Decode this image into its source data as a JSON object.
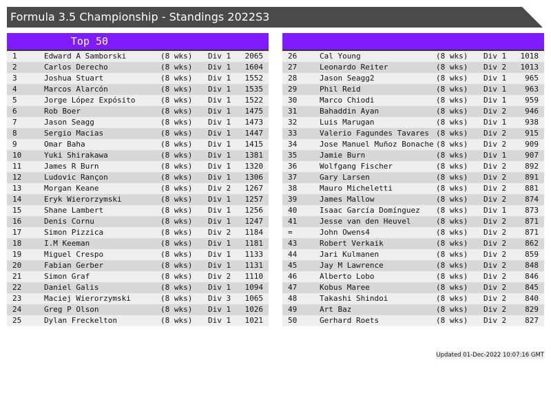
{
  "title": "Formula 3.5 Championship - Standings 2022S3",
  "left_header": "Top 50",
  "right_header": "",
  "accent": "#7f1cff",
  "left_rows": [
    [
      "1",
      "Edward A Samborski",
      "(8 wks)",
      "Div 1",
      "2065"
    ],
    [
      "2",
      "Carlos Derecho",
      "(8 wks)",
      "Div 1",
      "1604"
    ],
    [
      "3",
      "Joshua Stuart",
      "(8 wks)",
      "Div 1",
      "1552"
    ],
    [
      "4",
      "Marcos Alarcón",
      "(8 wks)",
      "Div 1",
      "1535"
    ],
    [
      "5",
      "Jorge López Expósito",
      "(8 wks)",
      "Div 1",
      "1522"
    ],
    [
      "6",
      "Rob Boer",
      "(8 wks)",
      "Div 1",
      "1475"
    ],
    [
      "7",
      "Jason Seagg",
      "(8 wks)",
      "Div 1",
      "1473"
    ],
    [
      "8",
      "Sergio Macias",
      "(8 wks)",
      "Div 1",
      "1447"
    ],
    [
      "9",
      "Omar Baha",
      "(8 wks)",
      "Div 1",
      "1415"
    ],
    [
      "10",
      "Yuki Shirakawa",
      "(8 wks)",
      "Div 1",
      "1381"
    ],
    [
      "11",
      "James R Burn",
      "(8 wks)",
      "Div 1",
      "1320"
    ],
    [
      "12",
      "Ludovic Rançon",
      "(8 wks)",
      "Div 1",
      "1306"
    ],
    [
      "13",
      "Morgan Keane",
      "(8 wks)",
      "Div 2",
      "1267"
    ],
    [
      "14",
      "Eryk Wierorzymski",
      "(8 wks)",
      "Div 1",
      "1257"
    ],
    [
      "15",
      "Shane Lambert",
      "(8 wks)",
      "Div 1",
      "1256"
    ],
    [
      "16",
      "Denis Cornu",
      "(8 wks)",
      "Div 1",
      "1247"
    ],
    [
      "17",
      "Simon Pizzica",
      "(8 wks)",
      "Div 2",
      "1184"
    ],
    [
      "18",
      "I.M Keeman",
      "(8 wks)",
      "Div 1",
      "1181"
    ],
    [
      "19",
      "Miguel Crespo",
      "(8 wks)",
      "Div 1",
      "1133"
    ],
    [
      "20",
      "Fabian Gerber",
      "(8 wks)",
      "Div 1",
      "1131"
    ],
    [
      "21",
      "Simon Graf",
      "(8 wks)",
      "Div 2",
      "1110"
    ],
    [
      "22",
      "Daniel Galis",
      "(8 wks)",
      "Div 1",
      "1094"
    ],
    [
      "23",
      "Maciej Wierorzymski",
      "(8 wks)",
      "Div 3",
      "1065"
    ],
    [
      "24",
      "Greg P Olson",
      "(8 wks)",
      "Div 1",
      "1026"
    ],
    [
      "25",
      "Dylan Freckelton",
      "(8 wks)",
      "Div 1",
      "1021"
    ]
  ],
  "right_rows": [
    [
      "26",
      "Cal Young",
      "(8 wks)",
      "Div 1",
      "1018"
    ],
    [
      "27",
      "Leonardo Reiter",
      "(8 wks)",
      "Div 2",
      "1013"
    ],
    [
      "28",
      "Jason Seagg2",
      "(8 wks)",
      "Div 1",
      "965"
    ],
    [
      "29",
      "Phil Reid",
      "(8 wks)",
      "Div 1",
      "963"
    ],
    [
      "30",
      "Marco Chiodi",
      "(8 wks)",
      "Div 1",
      "959"
    ],
    [
      "31",
      "Bahaddin Ayan",
      "(8 wks)",
      "Div 2",
      "946"
    ],
    [
      "32",
      "Luis Marugan",
      "(8 wks)",
      "Div 1",
      "938"
    ],
    [
      "33",
      "Valerio Fagundes Tavares",
      "(8 wks)",
      "Div 2",
      "915"
    ],
    [
      "34",
      "Jose Manuel Muñoz Bonache",
      "(8 wks)",
      "Div 2",
      "909"
    ],
    [
      "35",
      "Jamie Burn",
      "(8 wks)",
      "Div 1",
      "907"
    ],
    [
      "36",
      "Wolfgang Fischer",
      "(8 wks)",
      "Div 2",
      "892"
    ],
    [
      "37",
      "Gary Larsen",
      "(8 wks)",
      "Div 2",
      "891"
    ],
    [
      "38",
      "Mauro Micheletti",
      "(8 wks)",
      "Div 2",
      "881"
    ],
    [
      "39",
      "James Mallow",
      "(8 wks)",
      "Div 2",
      "874"
    ],
    [
      "40",
      "Isaac García Domínguez",
      "(8 wks)",
      "Div 1",
      "873"
    ],
    [
      "41",
      "Jesse van den Heuvel",
      "(8 wks)",
      "Div 2",
      "871"
    ],
    [
      "=",
      "John Owens4",
      "(8 wks)",
      "Div 2",
      "871"
    ],
    [
      "43",
      "Robert Verkaik",
      "(8 wks)",
      "Div 2",
      "862"
    ],
    [
      "44",
      "Jari Kulmanen",
      "(8 wks)",
      "Div 2",
      "859"
    ],
    [
      "45",
      "Jay M Lawrence",
      "(8 wks)",
      "Div 2",
      "848"
    ],
    [
      "46",
      "Alberto Lobo",
      "(8 wks)",
      "Div 2",
      "846"
    ],
    [
      "47",
      "Kobus Maree",
      "(8 wks)",
      "Div 2",
      "845"
    ],
    [
      "48",
      "Takashi Shindoi",
      "(8 wks)",
      "Div 2",
      "840"
    ],
    [
      "49",
      "Art Baz",
      "(8 wks)",
      "Div 2",
      "829"
    ],
    [
      "50",
      "Gerhard Roets",
      "(8 wks)",
      "Div 2",
      "827"
    ]
  ],
  "updated": "Updated 01-Dec-2022 10:07:16 GMT"
}
